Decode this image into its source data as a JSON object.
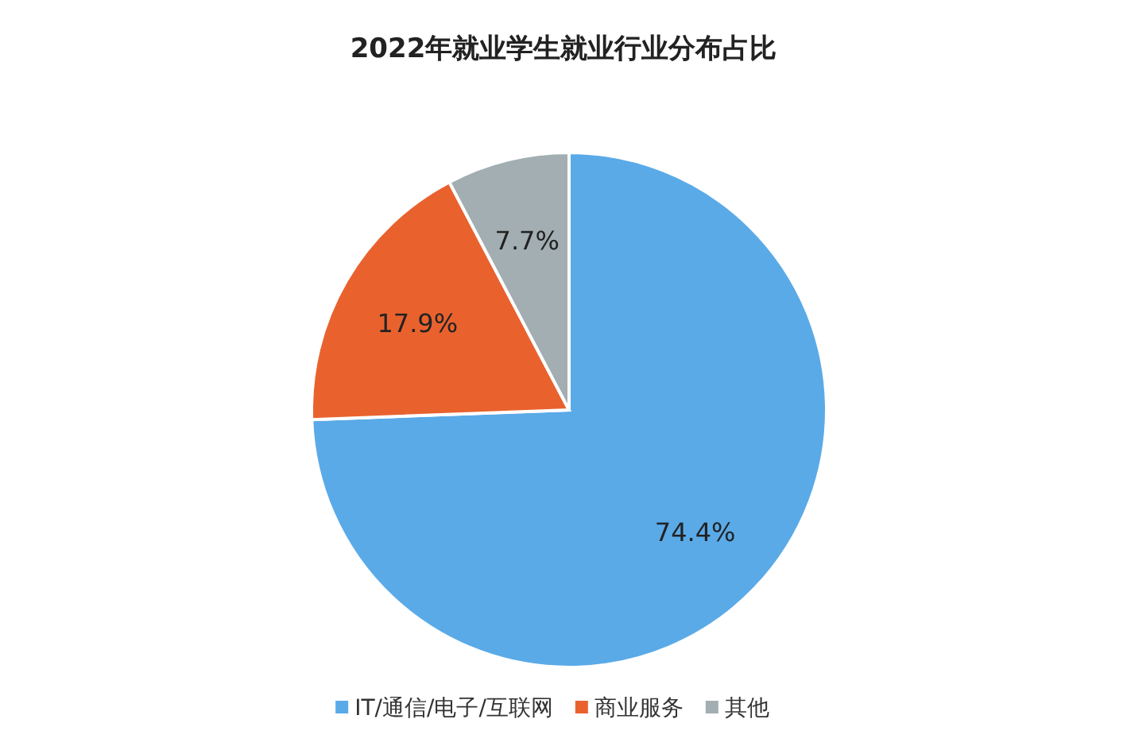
{
  "chart_data": {
    "type": "pie",
    "title": "2022年就业学生就业行业分布占比",
    "categories": [
      "IT/通信/电子/互联网",
      "商业服务",
      "其他"
    ],
    "values": [
      74.4,
      17.9,
      7.7
    ],
    "colors": [
      "#5aaae8",
      "#e9622e",
      "#a2aeb1"
    ],
    "value_labels": [
      "74.4%",
      "17.9%",
      "7.7%"
    ],
    "legend": "bottom"
  }
}
